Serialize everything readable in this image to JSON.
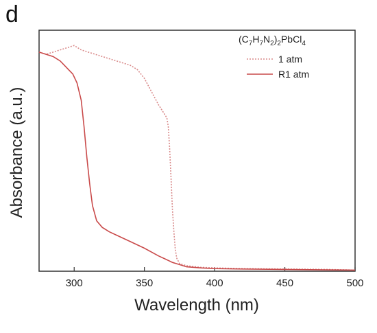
{
  "panel_label": "d",
  "chart_data": {
    "type": "line",
    "xlabel": "Wavelength (nm)",
    "ylabel": "Absorbance (a.u.)",
    "xlim": [
      275,
      500
    ],
    "ylim": [
      0,
      1.1
    ],
    "xticks": [
      300,
      350,
      400,
      450,
      500
    ],
    "grid": false,
    "legend": {
      "placement": "top-right",
      "title": {
        "parts": [
          "(C",
          "7",
          "H",
          "7",
          "N",
          "2",
          ")",
          "2",
          "PbCl",
          "4"
        ]
      }
    },
    "series": [
      {
        "name": "1 atm",
        "style": "dotted",
        "color": "#d98a8a",
        "x": [
          275,
          280,
          285,
          290,
          295,
          300,
          305,
          310,
          315,
          320,
          325,
          330,
          335,
          340,
          345,
          350,
          355,
          360,
          362,
          364,
          366,
          367,
          368,
          369,
          370,
          371,
          372,
          373,
          375,
          380,
          390,
          400,
          420,
          450,
          480,
          500
        ],
        "y": [
          1.0,
          0.99,
          1.0,
          1.01,
          1.02,
          1.03,
          1.01,
          1.0,
          0.99,
          0.98,
          0.97,
          0.96,
          0.95,
          0.94,
          0.92,
          0.88,
          0.82,
          0.76,
          0.74,
          0.72,
          0.7,
          0.66,
          0.56,
          0.42,
          0.28,
          0.18,
          0.1,
          0.06,
          0.035,
          0.025,
          0.018,
          0.015,
          0.012,
          0.01,
          0.008,
          0.005
        ]
      },
      {
        "name": "R1 atm",
        "style": "solid",
        "color": "#c94a4a",
        "x": [
          275,
          280,
          285,
          290,
          293,
          296,
          299,
          302,
          305,
          307,
          309,
          311,
          313,
          316,
          320,
          325,
          330,
          340,
          350,
          360,
          365,
          370,
          375,
          380,
          390,
          400,
          420,
          450,
          480,
          500
        ],
        "y": [
          1.0,
          0.99,
          0.98,
          0.96,
          0.94,
          0.92,
          0.9,
          0.86,
          0.78,
          0.66,
          0.52,
          0.4,
          0.3,
          0.23,
          0.2,
          0.18,
          0.165,
          0.135,
          0.105,
          0.07,
          0.055,
          0.04,
          0.03,
          0.02,
          0.015,
          0.012,
          0.01,
          0.008,
          0.006,
          0.005
        ]
      }
    ]
  }
}
